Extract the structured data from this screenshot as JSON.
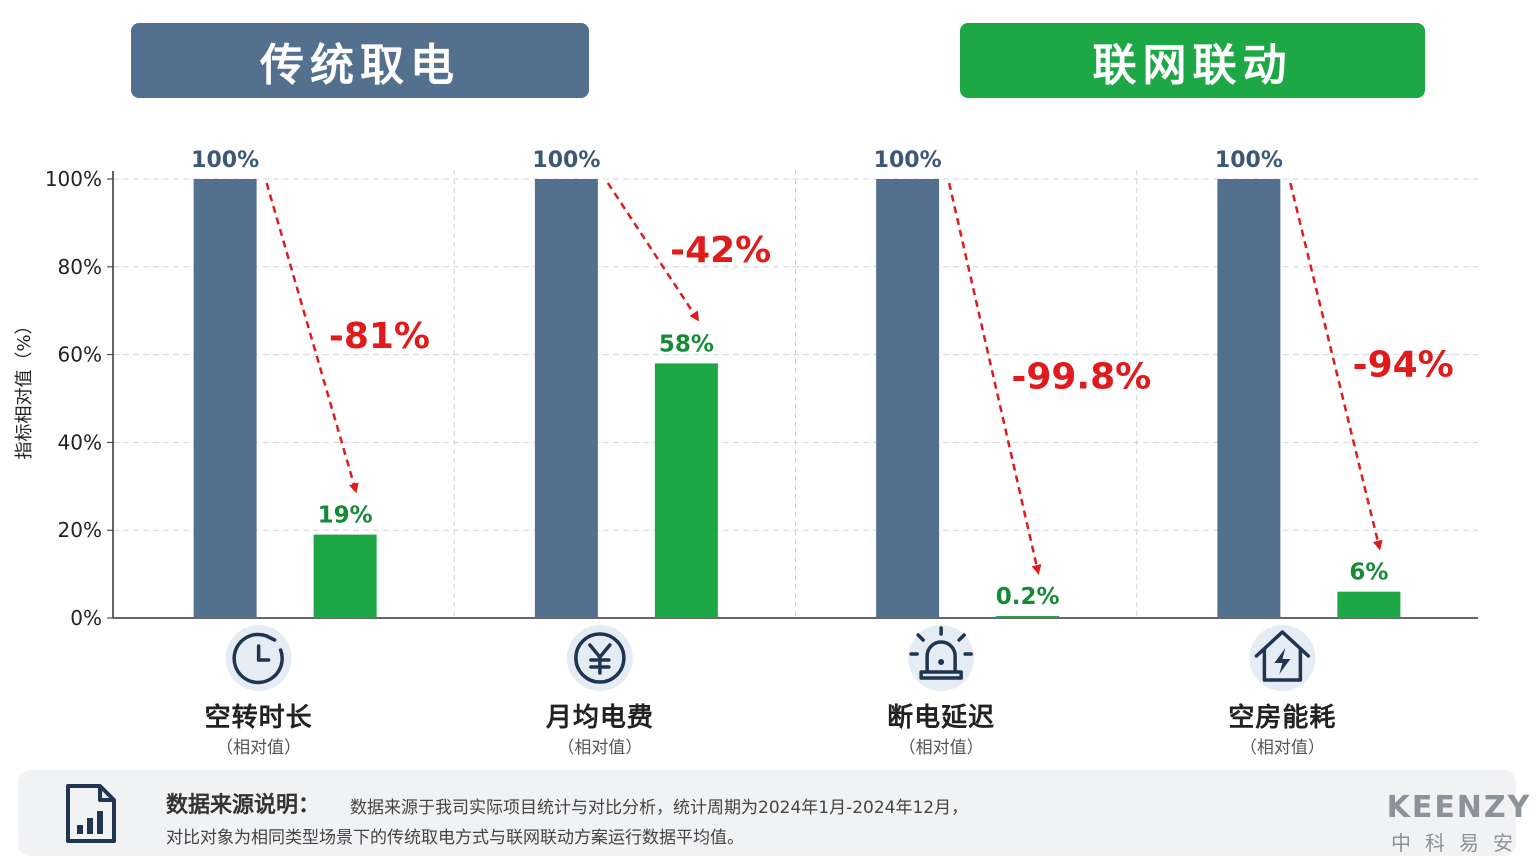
{
  "headers": {
    "left": "传统取电",
    "right": "联网联动"
  },
  "chart_data": {
    "type": "bar",
    "ylabel": "指标相对值（%）",
    "ylim": [
      0,
      100
    ],
    "yticks": [
      "0%",
      "20%",
      "40%",
      "60%",
      "80%",
      "100%"
    ],
    "categories": [
      "空转时长",
      "月均电费",
      "断电延迟",
      "空房能耗"
    ],
    "category_sub": "（相对值）",
    "category_icons": [
      "clock-icon",
      "yen-icon",
      "alarm-icon",
      "house-bolt-icon"
    ],
    "series": [
      {
        "values": [
          100,
          100,
          100,
          100
        ],
        "labels": [
          "100%",
          "100%",
          "100%",
          "100%"
        ],
        "color": "#54708f"
      },
      {
        "values": [
          19,
          58,
          0.2,
          6
        ],
        "labels": [
          "19%",
          "58%",
          "0.2%",
          "6%"
        ],
        "color": "#1ea845"
      }
    ],
    "changes": [
      "-81%",
      "-42%",
      "-99.8%",
      "-94%"
    ],
    "change_color": "#e01b1b",
    "grid": true
  },
  "footer": {
    "title": "数据来源说明：",
    "line1": "数据来源于我司实际项目统计与对比分析，统计周期为2024年1月-2024年12月，",
    "line2": "对比对象为相同类型场景下的传统取电方式与联网联动方案运行数据平均值。"
  },
  "brand": {
    "name": "KEENZY",
    "cn": "中科易安"
  }
}
